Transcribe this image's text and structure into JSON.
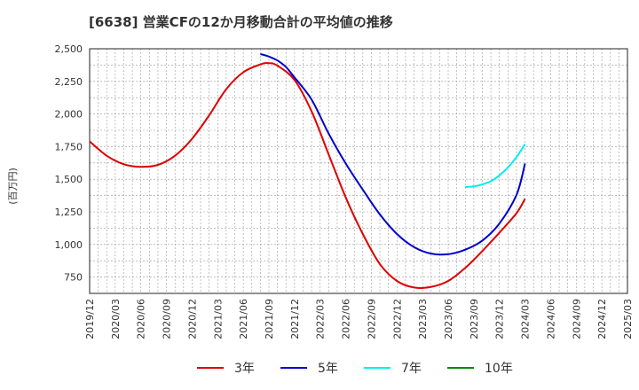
{
  "title": "[6638]  営業CFの12か月移動合計の平均値の推移",
  "y_unit": "(百万円)",
  "chart_data": {
    "type": "line",
    "ylim": [
      625,
      2500
    ],
    "yticks": [
      750,
      1000,
      1250,
      1500,
      1750,
      2000,
      2250,
      2500
    ],
    "ytick_labels": [
      "750",
      "1,000",
      "1,250",
      "1,500",
      "1,750",
      "2,000",
      "2,250",
      "2,500"
    ],
    "xticks": [
      "2019/12",
      "2020/03",
      "2020/06",
      "2020/09",
      "2020/12",
      "2021/03",
      "2021/06",
      "2021/09",
      "2021/12",
      "2022/03",
      "2022/06",
      "2022/09",
      "2022/12",
      "2023/03",
      "2023/06",
      "2023/09",
      "2023/12",
      "2024/03",
      "2024/06",
      "2024/09",
      "2024/12",
      "2025/03"
    ],
    "grid": true,
    "legend_position": "bottom",
    "series": [
      {
        "name": "3年",
        "color": "#dd0000",
        "x": [
          "2019/12",
          "2020/02",
          "2020/04",
          "2020/06",
          "2020/08",
          "2020/10",
          "2020/12",
          "2021/02",
          "2021/04",
          "2021/06",
          "2021/08",
          "2021/09",
          "2021/10",
          "2021/12",
          "2022/02",
          "2022/04",
          "2022/06",
          "2022/08",
          "2022/10",
          "2022/12",
          "2023/02",
          "2023/04",
          "2023/06",
          "2023/08",
          "2023/10",
          "2023/12",
          "2024/02",
          "2024/03"
        ],
        "values": [
          1790,
          1680,
          1615,
          1595,
          1610,
          1680,
          1810,
          1990,
          2190,
          2320,
          2380,
          2390,
          2370,
          2260,
          2020,
          1690,
          1360,
          1080,
          850,
          720,
          670,
          675,
          720,
          820,
          950,
          1090,
          1240,
          1350
        ]
      },
      {
        "name": "5年",
        "color": "#0000cc",
        "x": [
          "2021/08",
          "2021/09",
          "2021/10",
          "2021/11",
          "2021/12",
          "2022/02",
          "2022/04",
          "2022/06",
          "2022/08",
          "2022/10",
          "2022/12",
          "2023/02",
          "2023/04",
          "2023/06",
          "2023/08",
          "2023/10",
          "2023/12",
          "2024/02",
          "2024/03"
        ],
        "values": [
          2460,
          2440,
          2410,
          2360,
          2280,
          2110,
          1850,
          1620,
          1420,
          1230,
          1080,
          980,
          930,
          925,
          960,
          1030,
          1160,
          1380,
          1620
        ]
      },
      {
        "name": "7年",
        "color": "#00eeee",
        "x": [
          "2023/08",
          "2023/09",
          "2023/10",
          "2023/11",
          "2023/12",
          "2024/01",
          "2024/02",
          "2024/03"
        ],
        "values": [
          1440,
          1445,
          1460,
          1485,
          1530,
          1590,
          1670,
          1770
        ]
      },
      {
        "name": "10年",
        "color": "#008800",
        "x": [],
        "values": []
      }
    ]
  }
}
